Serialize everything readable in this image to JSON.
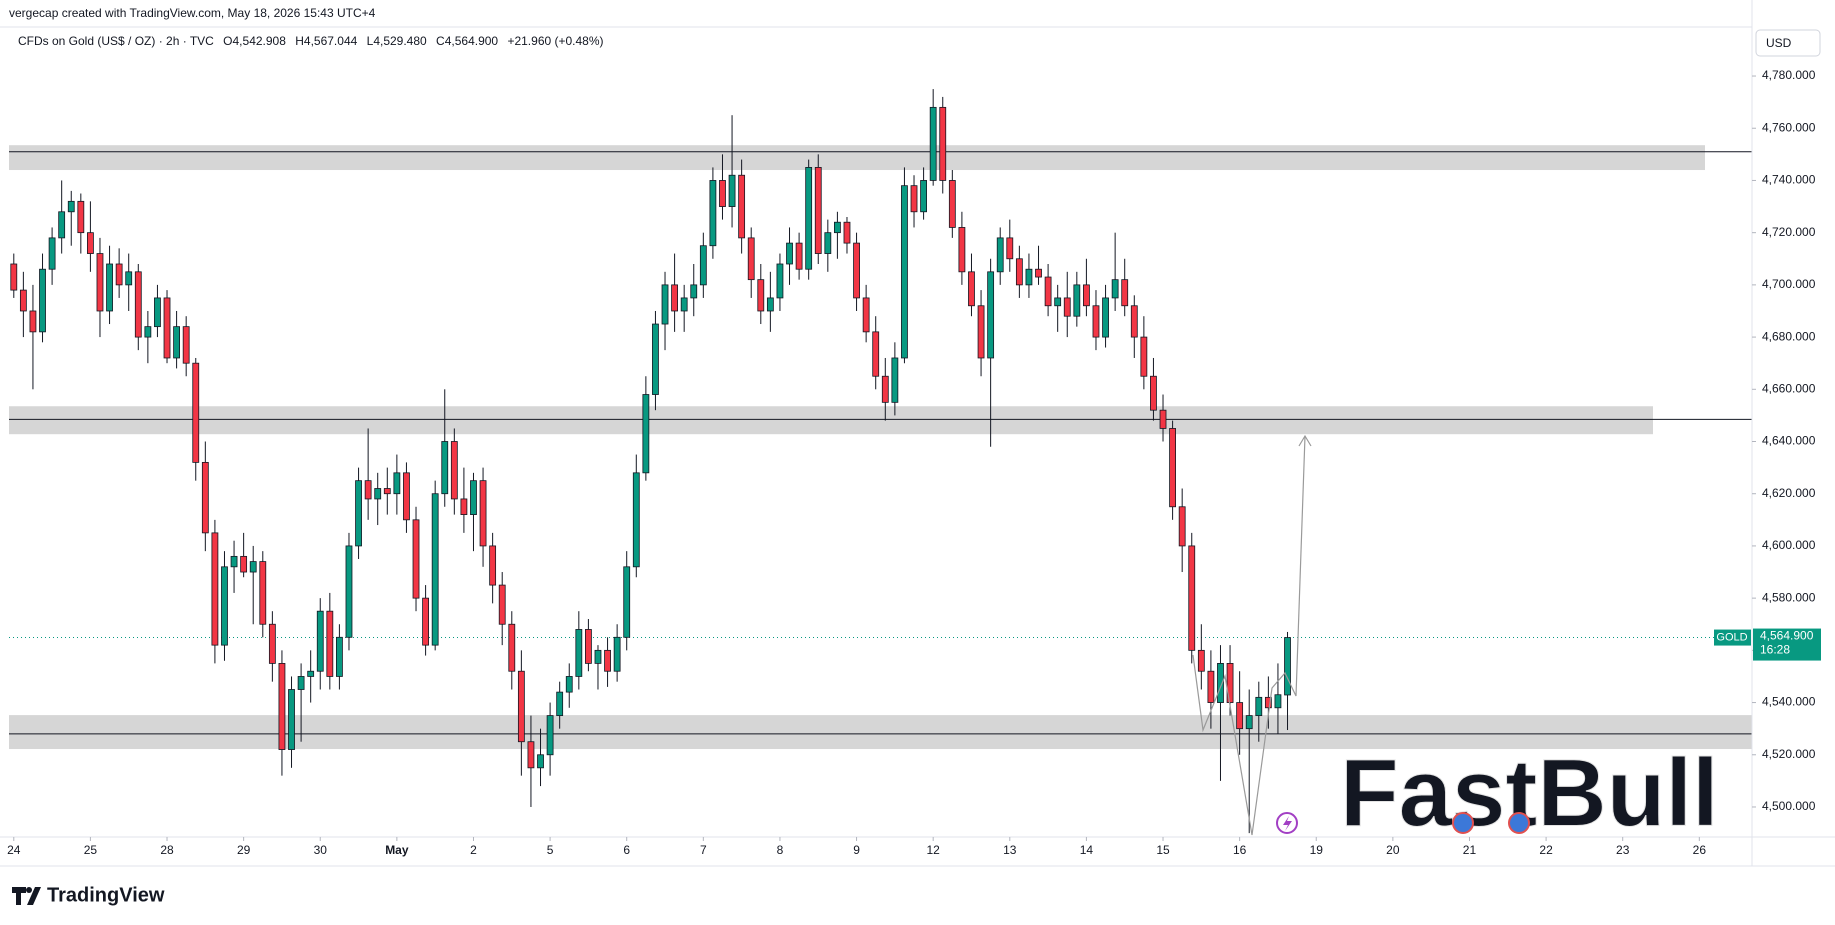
{
  "header": {
    "credit": "vergecap created with TradingView.com, May 18, 2026 15:43 UTC+4",
    "symbol_line": "CFDs on Gold (US$ / OZ) · 2h · TVC",
    "ohlc": [
      "O4,542.908",
      "H4,567.044",
      "L4,529.480",
      "C4,564.900"
    ],
    "change": "+21.960 (+0.48%)"
  },
  "chart_data": {
    "type": "candlestick",
    "currency": "USD",
    "xlim": [
      -0.5,
      181.5
    ],
    "xticks": [
      {
        "value": 0,
        "label": "24"
      },
      {
        "value": 8,
        "label": "25"
      },
      {
        "value": 16,
        "label": "28"
      },
      {
        "value": 24,
        "label": "29"
      },
      {
        "value": 32,
        "label": "30"
      },
      {
        "value": 40,
        "label": "May"
      },
      {
        "value": 48,
        "label": "2"
      },
      {
        "value": 56,
        "label": "5"
      },
      {
        "value": 64,
        "label": "6"
      },
      {
        "value": 72,
        "label": "7"
      },
      {
        "value": 80,
        "label": "8"
      },
      {
        "value": 88,
        "label": "9"
      },
      {
        "value": 96,
        "label": "12"
      },
      {
        "value": 104,
        "label": "13"
      },
      {
        "value": 112,
        "label": "14"
      },
      {
        "value": 120,
        "label": "15"
      },
      {
        "value": 128,
        "label": "16"
      },
      {
        "value": 136,
        "label": "19"
      },
      {
        "value": 144,
        "label": "20"
      },
      {
        "value": 152,
        "label": "21"
      },
      {
        "value": 160,
        "label": "22"
      },
      {
        "value": 168,
        "label": "23"
      },
      {
        "value": 176,
        "label": "26"
      }
    ],
    "ylim": [
      4488.5,
      4798.4
    ],
    "yticks": [
      {
        "value": 4500,
        "label": "4,500.000"
      },
      {
        "value": 4520,
        "label": "4,520.000"
      },
      {
        "value": 4540,
        "label": "4,540.000"
      },
      {
        "value": 4560,
        "label": "4,560.000"
      },
      {
        "value": 4580,
        "label": "4,580.000"
      },
      {
        "value": 4600,
        "label": "4,600.000"
      },
      {
        "value": 4620,
        "label": "4,620.000"
      },
      {
        "value": 4640,
        "label": "4,640.000"
      },
      {
        "value": 4660,
        "label": "4,660.000"
      },
      {
        "value": 4680,
        "label": "4,680.000"
      },
      {
        "value": 4700,
        "label": "4,700.000"
      },
      {
        "value": 4720,
        "label": "4,720.000"
      },
      {
        "value": 4740,
        "label": "4,740.000"
      },
      {
        "value": 4760,
        "label": "4,760.000"
      },
      {
        "value": 4780,
        "label": "4,780.000"
      }
    ],
    "up_color": "#089981",
    "down_color": "#f23645",
    "ohlc": [
      [
        4708,
        4712,
        4695,
        4698
      ],
      [
        4698,
        4705,
        4680,
        4690
      ],
      [
        4690,
        4700,
        4660,
        4682
      ],
      [
        4682,
        4712,
        4678,
        4706
      ],
      [
        4706,
        4722,
        4700,
        4718
      ],
      [
        4718,
        4740,
        4712,
        4728
      ],
      [
        4728,
        4736,
        4715,
        4732
      ],
      [
        4732,
        4735,
        4712,
        4720
      ],
      [
        4720,
        4732,
        4705,
        4712
      ],
      [
        4712,
        4718,
        4680,
        4690
      ],
      [
        4690,
        4715,
        4685,
        4708
      ],
      [
        4708,
        4714,
        4695,
        4700
      ],
      [
        4700,
        4712,
        4690,
        4705
      ],
      [
        4705,
        4708,
        4675,
        4680
      ],
      [
        4680,
        4690,
        4670,
        4684
      ],
      [
        4684,
        4700,
        4680,
        4695
      ],
      [
        4695,
        4698,
        4670,
        4672
      ],
      [
        4672,
        4690,
        4668,
        4684
      ],
      [
        4684,
        4688,
        4665,
        4670
      ],
      [
        4670,
        4672,
        4625,
        4632
      ],
      [
        4632,
        4640,
        4598,
        4605
      ],
      [
        4605,
        4610,
        4555,
        4562
      ],
      [
        4562,
        4598,
        4556,
        4592
      ],
      [
        4592,
        4602,
        4582,
        4596
      ],
      [
        4596,
        4605,
        4588,
        4590
      ],
      [
        4590,
        4600,
        4570,
        4594
      ],
      [
        4594,
        4598,
        4565,
        4570
      ],
      [
        4570,
        4575,
        4548,
        4555
      ],
      [
        4555,
        4560,
        4512,
        4522
      ],
      [
        4522,
        4550,
        4515,
        4545
      ],
      [
        4545,
        4555,
        4525,
        4550
      ],
      [
        4550,
        4560,
        4540,
        4552
      ],
      [
        4552,
        4580,
        4545,
        4575
      ],
      [
        4575,
        4582,
        4545,
        4550
      ],
      [
        4550,
        4570,
        4545,
        4565
      ],
      [
        4565,
        4605,
        4560,
        4600
      ],
      [
        4600,
        4630,
        4595,
        4625
      ],
      [
        4625,
        4645,
        4610,
        4618
      ],
      [
        4618,
        4628,
        4608,
        4622
      ],
      [
        4622,
        4630,
        4612,
        4620
      ],
      [
        4620,
        4635,
        4612,
        4628
      ],
      [
        4628,
        4632,
        4605,
        4610
      ],
      [
        4610,
        4615,
        4575,
        4580
      ],
      [
        4580,
        4585,
        4558,
        4562
      ],
      [
        4562,
        4625,
        4560,
        4620
      ],
      [
        4620,
        4660,
        4615,
        4640
      ],
      [
        4640,
        4645,
        4612,
        4618
      ],
      [
        4618,
        4630,
        4605,
        4612
      ],
      [
        4612,
        4628,
        4598,
        4625
      ],
      [
        4625,
        4630,
        4592,
        4600
      ],
      [
        4600,
        4605,
        4578,
        4585
      ],
      [
        4585,
        4590,
        4562,
        4570
      ],
      [
        4570,
        4575,
        4545,
        4552
      ],
      [
        4552,
        4560,
        4512,
        4525
      ],
      [
        4525,
        4535,
        4500,
        4515
      ],
      [
        4515,
        4530,
        4508,
        4520
      ],
      [
        4520,
        4540,
        4512,
        4535
      ],
      [
        4535,
        4548,
        4530,
        4544
      ],
      [
        4544,
        4555,
        4538,
        4550
      ],
      [
        4550,
        4575,
        4545,
        4568
      ],
      [
        4568,
        4572,
        4552,
        4555
      ],
      [
        4555,
        4562,
        4545,
        4560
      ],
      [
        4560,
        4565,
        4546,
        4552
      ],
      [
        4552,
        4570,
        4548,
        4565
      ],
      [
        4565,
        4598,
        4560,
        4592
      ],
      [
        4592,
        4635,
        4588,
        4628
      ],
      [
        4628,
        4665,
        4625,
        4658
      ],
      [
        4658,
        4690,
        4652,
        4685
      ],
      [
        4685,
        4705,
        4675,
        4700
      ],
      [
        4700,
        4712,
        4682,
        4690
      ],
      [
        4690,
        4700,
        4682,
        4695
      ],
      [
        4695,
        4708,
        4688,
        4700
      ],
      [
        4700,
        4720,
        4695,
        4715
      ],
      [
        4715,
        4745,
        4710,
        4740
      ],
      [
        4740,
        4750,
        4725,
        4730
      ],
      [
        4730,
        4765,
        4722,
        4742
      ],
      [
        4742,
        4748,
        4712,
        4718
      ],
      [
        4718,
        4722,
        4695,
        4702
      ],
      [
        4702,
        4708,
        4685,
        4690
      ],
      [
        4690,
        4705,
        4682,
        4695
      ],
      [
        4695,
        4712,
        4690,
        4708
      ],
      [
        4708,
        4722,
        4700,
        4716
      ],
      [
        4716,
        4720,
        4702,
        4706
      ],
      [
        4706,
        4748,
        4702,
        4745
      ],
      [
        4745,
        4750,
        4708,
        4712
      ],
      [
        4712,
        4725,
        4705,
        4720
      ],
      [
        4720,
        4728,
        4710,
        4724
      ],
      [
        4724,
        4726,
        4712,
        4716
      ],
      [
        4716,
        4720,
        4690,
        4695
      ],
      [
        4695,
        4700,
        4678,
        4682
      ],
      [
        4682,
        4688,
        4660,
        4665
      ],
      [
        4665,
        4672,
        4648,
        4655
      ],
      [
        4655,
        4678,
        4650,
        4672
      ],
      [
        4672,
        4745,
        4670,
        4738
      ],
      [
        4738,
        4742,
        4722,
        4728
      ],
      [
        4728,
        4745,
        4725,
        4740
      ],
      [
        4740,
        4775,
        4738,
        4768
      ],
      [
        4768,
        4772,
        4735,
        4740
      ],
      [
        4740,
        4744,
        4718,
        4722
      ],
      [
        4722,
        4728,
        4700,
        4705
      ],
      [
        4705,
        4712,
        4688,
        4692
      ],
      [
        4692,
        4698,
        4665,
        4672
      ],
      [
        4672,
        4710,
        4638,
        4705
      ],
      [
        4705,
        4722,
        4700,
        4718
      ],
      [
        4718,
        4725,
        4705,
        4710
      ],
      [
        4710,
        4715,
        4695,
        4700
      ],
      [
        4700,
        4712,
        4695,
        4706
      ],
      [
        4706,
        4715,
        4700,
        4703
      ],
      [
        4703,
        4708,
        4688,
        4692
      ],
      [
        4692,
        4700,
        4682,
        4695
      ],
      [
        4695,
        4705,
        4680,
        4688
      ],
      [
        4688,
        4705,
        4684,
        4700
      ],
      [
        4700,
        4710,
        4688,
        4692
      ],
      [
        4692,
        4698,
        4675,
        4680
      ],
      [
        4680,
        4700,
        4676,
        4695
      ],
      [
        4695,
        4720,
        4690,
        4702
      ],
      [
        4702,
        4710,
        4688,
        4692
      ],
      [
        4692,
        4696,
        4672,
        4680
      ],
      [
        4680,
        4688,
        4660,
        4665
      ],
      [
        4665,
        4672,
        4648,
        4652
      ],
      [
        4652,
        4658,
        4640,
        4645
      ],
      [
        4645,
        4648,
        4610,
        4615
      ],
      [
        4615,
        4622,
        4590,
        4600
      ],
      [
        4600,
        4605,
        4555,
        4560
      ],
      [
        4560,
        4570,
        4545,
        4552
      ],
      [
        4552,
        4560,
        4530,
        4540
      ],
      [
        4540,
        4562,
        4510,
        4555
      ],
      [
        4555,
        4562,
        4535,
        4540
      ],
      [
        4540,
        4552,
        4520,
        4530
      ],
      [
        4530,
        4545,
        4490,
        4535
      ],
      [
        4535,
        4548,
        4525,
        4542
      ],
      [
        4542,
        4550,
        4530,
        4538
      ],
      [
        4538,
        4555,
        4528,
        4543
      ],
      [
        4542.908,
        4567.044,
        4529.48,
        4564.9
      ]
    ],
    "zones": [
      {
        "top": 4753.5,
        "bottom": 4744,
        "line": 4751
      },
      {
        "top": 4653.5,
        "bottom": 4642.8,
        "line": 4648.5
      },
      {
        "top": 4535.2,
        "bottom": 4522.2,
        "line": 4528
      }
    ],
    "last_price": {
      "value": 4564.9,
      "label": "4,564.900"
    },
    "last_symbol": "GOLD",
    "countdown": "16:28"
  },
  "footer": {
    "brand": "TradingView",
    "watermark": "FastBull"
  }
}
